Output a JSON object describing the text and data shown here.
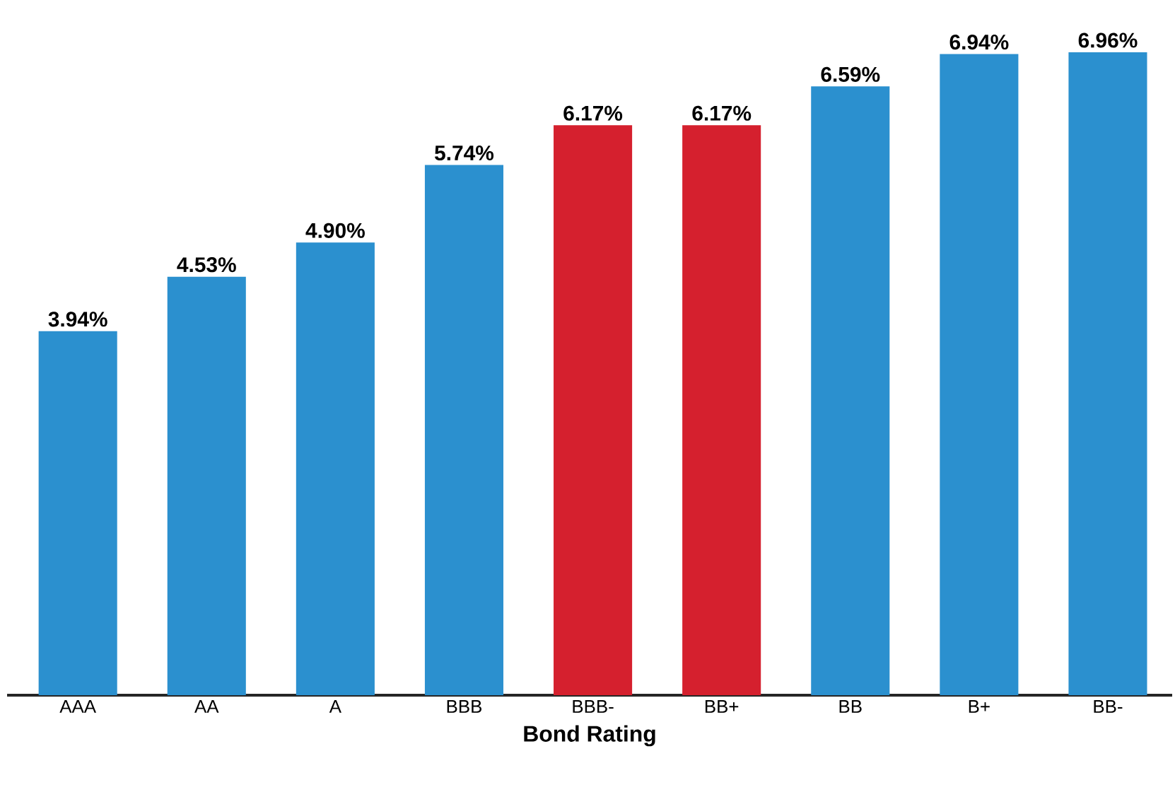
{
  "chart_data": {
    "type": "bar",
    "xlabel": "Bond Rating",
    "categories": [
      "AAA",
      "AA",
      "A",
      "BBB",
      "BBB-",
      "BB+",
      "BB",
      "B+",
      "BB-"
    ],
    "values": [
      3.94,
      4.53,
      4.9,
      5.74,
      6.17,
      6.17,
      6.59,
      6.94,
      6.96
    ],
    "value_labels": [
      "3.94%",
      "4.53%",
      "4.90%",
      "5.74%",
      "6.17%",
      "6.17%",
      "6.59%",
      "6.94%",
      "6.96%"
    ],
    "colors": [
      "#2b90cf",
      "#2b90cf",
      "#2b90cf",
      "#2b90cf",
      "#d5202e",
      "#d5202e",
      "#2b90cf",
      "#2b90cf",
      "#2b90cf"
    ]
  }
}
